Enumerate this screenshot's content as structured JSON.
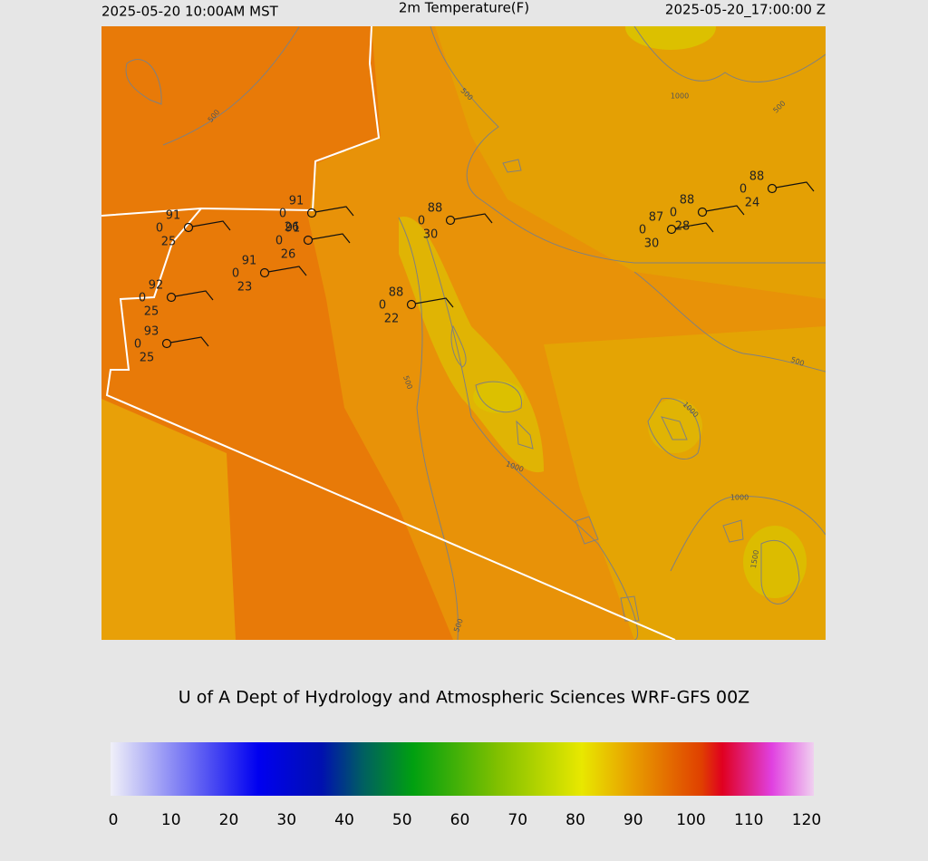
{
  "header": {
    "valid_local": "2025-05-20 10:00AM MST",
    "title": "2m Temperature(F)",
    "valid_utc": "2025-05-20_17:00:00 Z"
  },
  "stations": [
    {
      "temperature": "91",
      "pressure_flag": "0",
      "dewpoint": "25"
    },
    {
      "temperature": "91",
      "pressure_flag": "0",
      "dewpoint": "26"
    },
    {
      "temperature": "91",
      "pressure_flag": "0",
      "dewpoint": "26"
    },
    {
      "temperature": "91",
      "pressure_flag": "0",
      "dewpoint": "23"
    },
    {
      "temperature": "92",
      "pressure_flag": "0",
      "dewpoint": "25"
    },
    {
      "temperature": "93",
      "pressure_flag": "0",
      "dewpoint": "25"
    },
    {
      "temperature": "88",
      "pressure_flag": "0",
      "dewpoint": "30"
    },
    {
      "temperature": "88",
      "pressure_flag": "0",
      "dewpoint": "22"
    },
    {
      "temperature": "87",
      "pressure_flag": "0",
      "dewpoint": "30"
    },
    {
      "temperature": "88",
      "pressure_flag": "0",
      "dewpoint": "28"
    },
    {
      "temperature": "88",
      "pressure_flag": "0",
      "dewpoint": "24"
    }
  ],
  "contour_labels": [
    "500",
    "1000",
    "500",
    "500",
    "500",
    "1000",
    "500",
    "1000",
    "1000",
    "1500",
    "500"
  ],
  "credit": "U of A Dept of Hydrology and Atmospheric Sciences WRF-GFS 00Z",
  "colorbar": {
    "ticks": [
      0,
      10,
      20,
      30,
      40,
      50,
      60,
      70,
      80,
      90,
      100,
      110,
      120
    ]
  }
}
